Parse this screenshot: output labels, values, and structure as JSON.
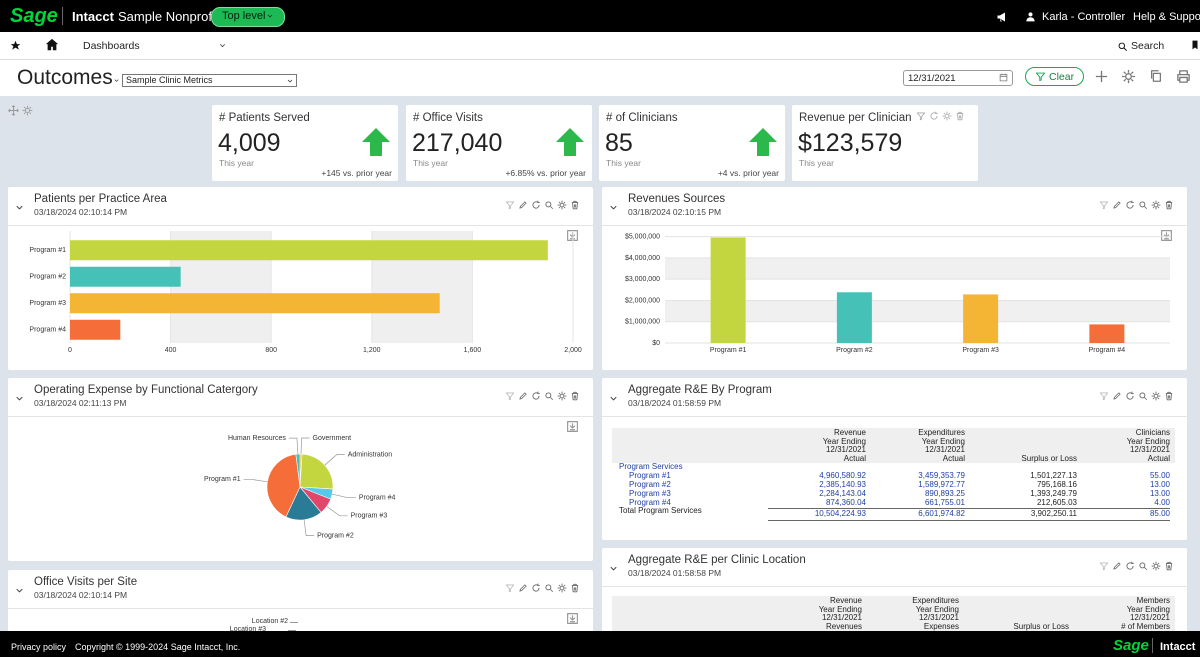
{
  "topbar": {
    "logo": "Sage",
    "product": "Intacct",
    "company": "Sample Nonprofit",
    "level": "Top level",
    "user": "Karla - Controller",
    "help": "Help & Support"
  },
  "nav": {
    "menu": "Dashboards",
    "search": "Search"
  },
  "toolbar": {
    "title": "Outcomes",
    "dashboard": "Sample Clinic Metrics",
    "date": "12/31/2021",
    "clear": "Clear"
  },
  "kpis": [
    {
      "title": "# Patients Served",
      "value": "4,009",
      "period": "This year",
      "change": "+145 vs. prior year"
    },
    {
      "title": "# Office Visits",
      "value": "217,040",
      "period": "This year",
      "change": "+6.85% vs. prior year"
    },
    {
      "title": "# of Clinicians",
      "value": "85",
      "period": "This year",
      "change": "+4 vs. prior year"
    },
    {
      "title": "Revenue per Clinician",
      "value": "$123,579",
      "period": "This year"
    }
  ],
  "panels": [
    {
      "title": "Patients per Practice Area",
      "timestamp": "03/18/2024 02:10:14 PM"
    },
    {
      "title": "Revenues Sources",
      "timestamp": "03/18/2024 02:10:15 PM"
    },
    {
      "title": "Operating Expense by Functional Catergory",
      "timestamp": "03/18/2024 02:11:13 PM"
    },
    {
      "title": "Aggregate R&E By Program",
      "timestamp": "03/18/2024 01:58:59 PM"
    },
    {
      "title": "Aggregate R&E per Clinic Location",
      "timestamp": "03/18/2024 01:58:58 PM"
    },
    {
      "title": "Office Visits per Site",
      "timestamp": "03/18/2024 02:10:14 PM"
    }
  ],
  "chart_data": [
    {
      "type": "bar",
      "orientation": "horizontal",
      "categories": [
        "Program #1",
        "Program #2",
        "Program #3",
        "Program #4"
      ],
      "values": [
        1900,
        440,
        1470,
        200
      ],
      "colors": [
        "#c4d63f",
        "#45c1b8",
        "#f4b434",
        "#f56e3a"
      ],
      "xlim": [
        0,
        2000
      ],
      "xticks": [
        0,
        400,
        800,
        {
          "value": 1200,
          "label": "1,200"
        },
        {
          "value": 1600,
          "label": "1,600"
        },
        {
          "value": 2000,
          "label": "2,000"
        }
      ],
      "grid": true
    },
    {
      "type": "bar",
      "orientation": "vertical",
      "categories": [
        "Program #1",
        "Program #2",
        "Program #3",
        "Program #4"
      ],
      "values": [
        4960580.92,
        2385140.93,
        2284143.04,
        874360.04
      ],
      "colors": [
        "#c4d63f",
        "#45c1b8",
        "#f4b434",
        "#f56e3a"
      ],
      "ylim": [
        0,
        5500000
      ],
      "yticks": [
        {
          "value": 0,
          "label": "$0"
        },
        {
          "value": 1000000,
          "label": "$1,000,000"
        },
        {
          "value": 2000000,
          "label": "$2,000,000"
        },
        {
          "value": 3000000,
          "label": "$3,000,000"
        },
        {
          "value": 4000000,
          "label": "$4,000,000"
        },
        {
          "value": 5000000,
          "label": "$5,000,000"
        }
      ],
      "grid": true
    },
    {
      "type": "pie",
      "categories": [
        "Government",
        "Administration",
        "Program #4",
        "Program #3",
        "Program #2",
        "Program #1",
        "Human Resources"
      ],
      "values": [
        1,
        25,
        5,
        8,
        18,
        41,
        2
      ],
      "colors": [
        "#f4b434",
        "#c4d63f",
        "#57c8e8",
        "#e0476a",
        "#2a7b96",
        "#f56e3a",
        "#45c1b8"
      ]
    }
  ],
  "tables": [
    {
      "columns": [
        [
          "Revenue",
          "Year Ending",
          "12/31/2021",
          "Actual"
        ],
        [
          "Expenditures",
          "Year Ending",
          "12/31/2021",
          "Actual"
        ],
        [
          "Surplus or Loss"
        ],
        [
          "Clinicians",
          "Year Ending",
          "12/31/2021",
          "Actual"
        ]
      ],
      "group": "Program Services",
      "rows": [
        {
          "label": "Program #1",
          "cells": [
            "4,960,580.92",
            "3,459,353.79",
            "1,501,227.13",
            "55.00"
          ]
        },
        {
          "label": "Program #2",
          "cells": [
            "2,385,140.93",
            "1,589,972.77",
            "795,168.16",
            "13.00"
          ]
        },
        {
          "label": "Program #3",
          "cells": [
            "2,284,143.04",
            "890,893.25",
            "1,393,249.79",
            "13.00"
          ]
        },
        {
          "label": "Program #4",
          "cells": [
            "874,360.04",
            "661,755.01",
            "212,605.03",
            "4.00"
          ]
        }
      ],
      "total": {
        "label": "Total Program Services",
        "cells": [
          "10,504,224.93",
          "6,601,974.82",
          "3,902,250.11",
          "85.00"
        ]
      }
    },
    {
      "columns": [
        [
          "Revenue",
          "Year Ending",
          "12/31/2021",
          "Revenues"
        ],
        [
          "Expenditures",
          "Year Ending",
          "12/31/2021",
          "Expenses"
        ],
        [
          "Surplus or Loss"
        ],
        [
          "Members",
          "Year Ending",
          "12/31/2021",
          "# of Members"
        ]
      ]
    }
  ],
  "site_labels": [
    "Location #2",
    "Location #3"
  ],
  "footer": {
    "privacy": "Privacy policy",
    "copyright": "Copyright © 1999-2024 Sage Intacct, Inc.",
    "logo": "Sage",
    "product": "Intacct"
  }
}
